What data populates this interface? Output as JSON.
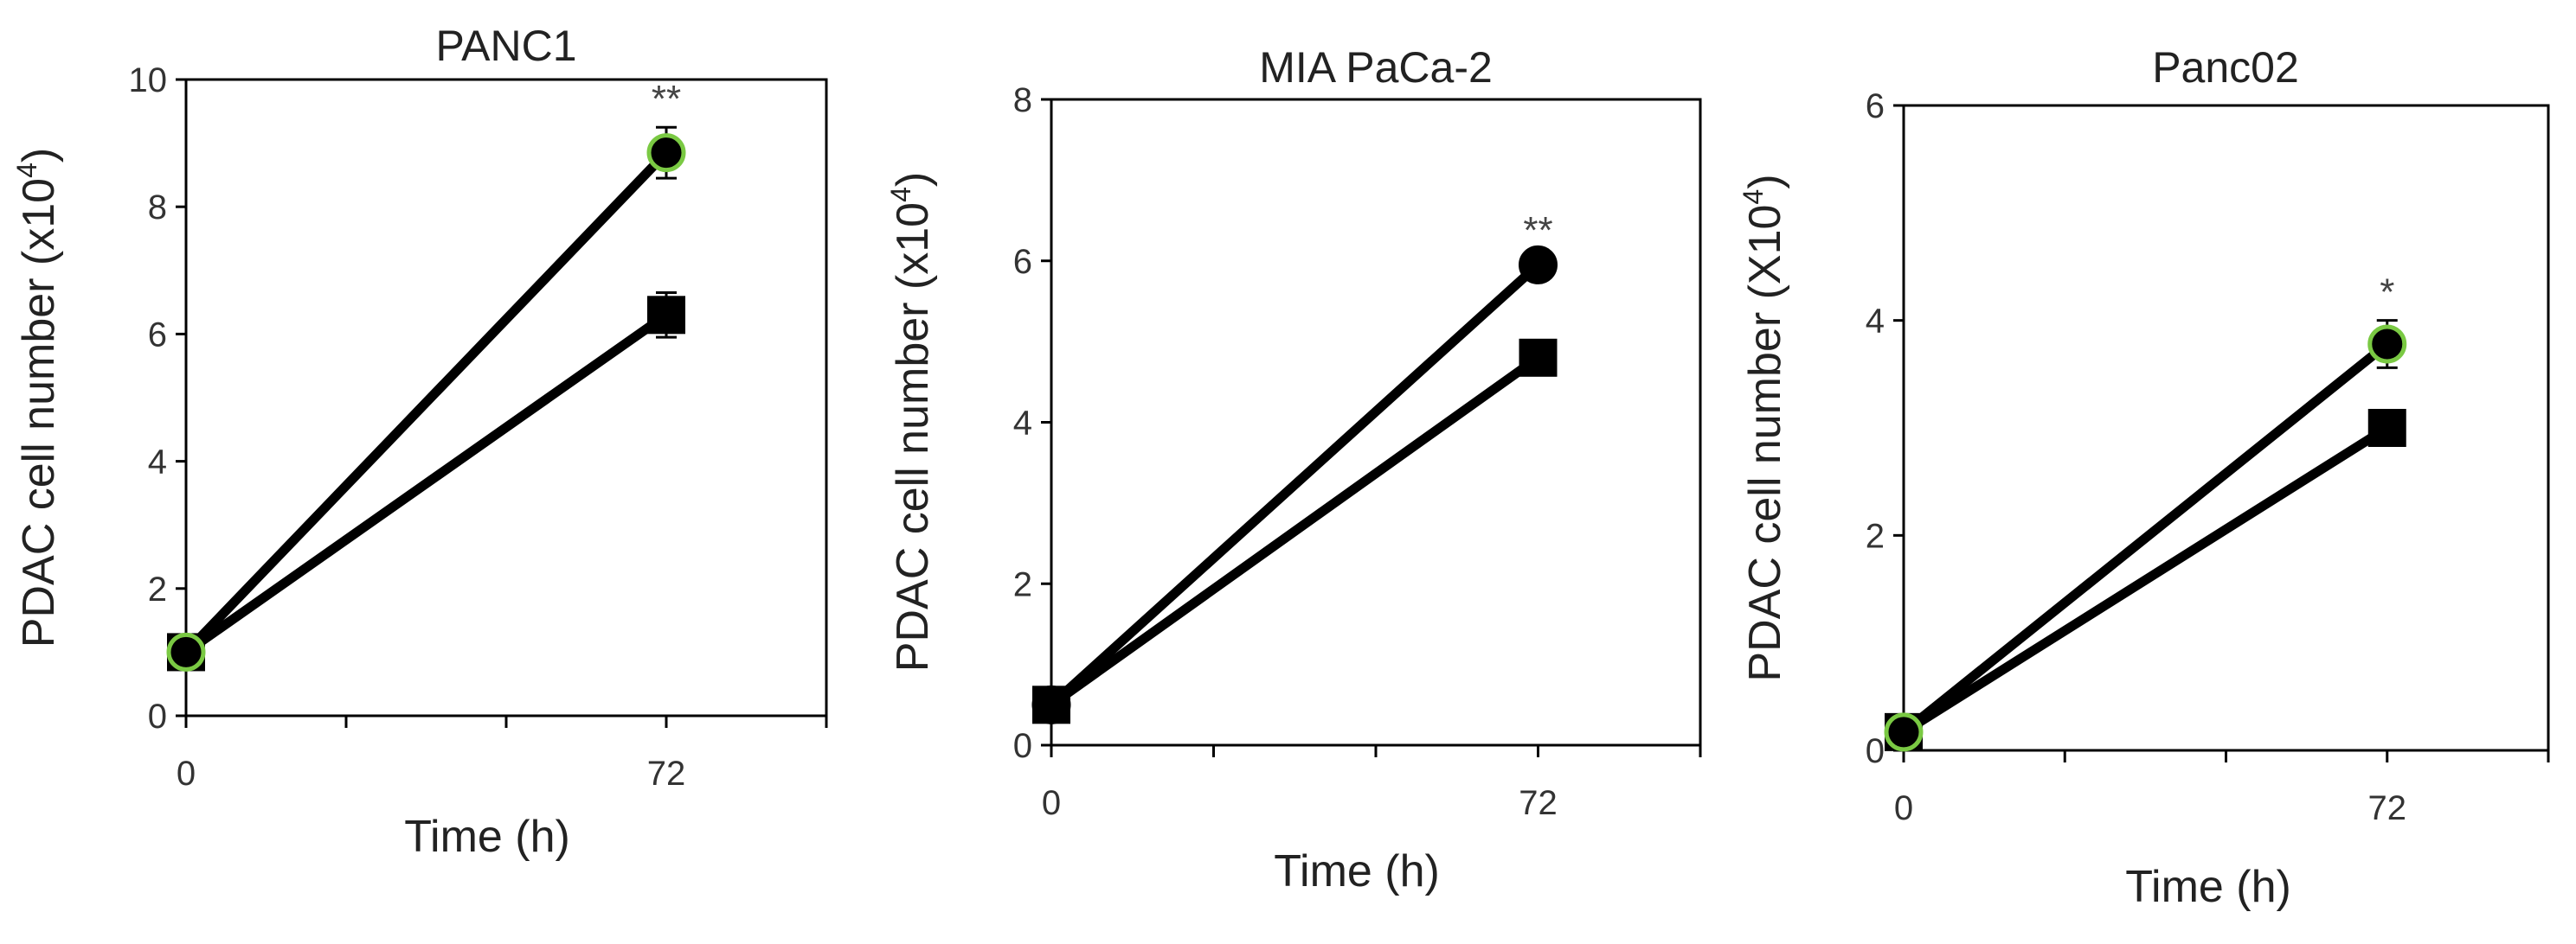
{
  "chart_data": [
    {
      "type": "line",
      "title": "PANC1",
      "xlabel": "Time (h)",
      "ylabel_main": "PDAC cell number (x10",
      "ylabel_sup": "4",
      "ylabel_close": ")",
      "ylim": [
        0,
        10
      ],
      "yticks": [
        "0",
        "2",
        "4",
        "6",
        "8",
        "10"
      ],
      "x_tick_labels": [
        "0",
        "72"
      ],
      "x": [
        0,
        72
      ],
      "xlim": [
        0,
        96
      ],
      "significance": "**",
      "series": [
        {
          "marker": "circle",
          "values": [
            1.0,
            8.85
          ],
          "errors": [
            0.1,
            0.4
          ],
          "marker_edge": "#7ac943"
        },
        {
          "marker": "square",
          "values": [
            1.0,
            6.3
          ],
          "errors": [
            0.1,
            0.35
          ]
        }
      ]
    },
    {
      "type": "line",
      "title": "MIA PaCa-2",
      "xlabel": "Time (h)",
      "ylabel_main": "PDAC cell number (x10",
      "ylabel_sup": "4",
      "ylabel_close": ")",
      "ylim": [
        0,
        8
      ],
      "yticks": [
        "0",
        "2",
        "4",
        "6",
        "8"
      ],
      "x_tick_labels": [
        "0",
        "72"
      ],
      "x": [
        0,
        72
      ],
      "xlim": [
        0,
        96
      ],
      "significance": "**",
      "series": [
        {
          "marker": "circle",
          "values": [
            0.5,
            5.95
          ],
          "errors": [
            0.05,
            0.08
          ],
          "marker_edge": "#000000"
        },
        {
          "marker": "square",
          "values": [
            0.5,
            4.8
          ],
          "errors": [
            0.05,
            0.08
          ]
        }
      ]
    },
    {
      "type": "line",
      "title": "Panc02",
      "xlabel": "Time (h)",
      "ylabel_main": "PDAC cell number (X10",
      "ylabel_sup": "4",
      "ylabel_close": ")",
      "ylim": [
        0,
        6
      ],
      "yticks": [
        "0",
        "2",
        "4",
        "6"
      ],
      "x_tick_labels": [
        "0",
        "72"
      ],
      "x": [
        0,
        72
      ],
      "xlim": [
        0,
        96
      ],
      "significance": "*",
      "series": [
        {
          "marker": "circle",
          "values": [
            0.17,
            3.78
          ],
          "errors": [
            0.05,
            0.22
          ],
          "marker_edge": "#7ac943"
        },
        {
          "marker": "square",
          "values": [
            0.17,
            3.0
          ],
          "errors": [
            0.05,
            0.1
          ]
        }
      ]
    }
  ]
}
